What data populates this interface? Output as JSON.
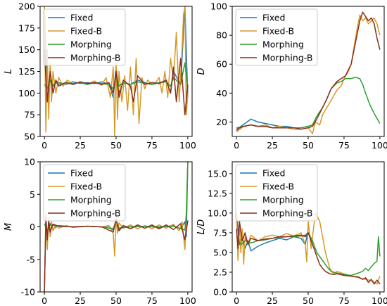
{
  "series_names": [
    "Fixed",
    "Fixed-B",
    "Morphing",
    "Morphing-B"
  ],
  "colors": {
    "Fixed": "#1f77b4",
    "Fixed-B": "#d69a26",
    "Morphing": "#2ca02c",
    "Morphing-B": "#8c2d1f"
  },
  "chart_data": [
    {
      "type": "line",
      "ylabel": "L",
      "xlim": [
        -3,
        103
      ],
      "ylim": [
        50,
        200
      ],
      "xticks": [
        0,
        25,
        50,
        75,
        100
      ],
      "yticks": [
        50,
        75,
        100,
        125,
        150,
        175,
        200
      ],
      "legend": "top-left",
      "grid": false,
      "series": [
        {
          "name": "Fixed",
          "x": [
            0,
            2,
            4,
            6,
            8,
            10,
            15,
            20,
            25,
            30,
            35,
            40,
            45,
            48,
            50,
            52,
            55,
            60,
            65,
            70,
            75,
            80,
            85,
            88,
            90,
            95,
            98,
            100
          ],
          "y": [
            200,
            90,
            120,
            108,
            114,
            112,
            110,
            113,
            111,
            112,
            111,
            113,
            110,
            95,
            130,
            100,
            112,
            110,
            115,
            112,
            110,
            112,
            114,
            100,
            125,
            110,
            200,
            95
          ]
        },
        {
          "name": "Fixed-B",
          "x": [
            0,
            1,
            2,
            3,
            4,
            5,
            6,
            8,
            10,
            13,
            16,
            20,
            25,
            30,
            35,
            40,
            43,
            46,
            48,
            49,
            50,
            51,
            52,
            54,
            56,
            58,
            60,
            62,
            64,
            66,
            68,
            70,
            72,
            75,
            78,
            80,
            82,
            84,
            86,
            88,
            90,
            92,
            94,
            96,
            97,
            98,
            99,
            100
          ],
          "y": [
            200,
            55,
            150,
            70,
            135,
            90,
            125,
            100,
            118,
            108,
            115,
            110,
            113,
            110,
            114,
            109,
            118,
            95,
            130,
            50,
            135,
            70,
            125,
            90,
            120,
            80,
            130,
            75,
            140,
            65,
            118,
            105,
            115,
            110,
            113,
            118,
            100,
            125,
            95,
            140,
            115,
            170,
            90,
            150,
            190,
            200,
            75,
            100
          ]
        },
        {
          "name": "Morphing",
          "x": [
            0,
            2,
            4,
            6,
            8,
            10,
            15,
            20,
            25,
            30,
            35,
            40,
            45,
            48,
            50,
            52,
            55,
            60,
            65,
            70,
            75,
            80,
            85,
            88,
            90,
            95,
            98,
            100
          ],
          "y": [
            110,
            105,
            115,
            108,
            112,
            110,
            112,
            111,
            112,
            110,
            112,
            111,
            110,
            105,
            120,
            108,
            112,
            110,
            113,
            111,
            110,
            112,
            113,
            108,
            118,
            110,
            135,
            105
          ]
        },
        {
          "name": "Morphing-B",
          "x": [
            0,
            2,
            4,
            6,
            8,
            10,
            15,
            20,
            25,
            30,
            35,
            40,
            45,
            48,
            50,
            52,
            55,
            60,
            62,
            65,
            70,
            75,
            80,
            85,
            88,
            90,
            92,
            95,
            98,
            100
          ],
          "y": [
            150,
            90,
            125,
            100,
            115,
            108,
            112,
            110,
            113,
            111,
            112,
            110,
            112,
            100,
            125,
            95,
            115,
            108,
            90,
            120,
            110,
            112,
            111,
            115,
            100,
            130,
            90,
            140,
            75,
            110
          ]
        }
      ]
    },
    {
      "type": "line",
      "ylabel": "D",
      "xlim": [
        -3,
        103
      ],
      "ylim": [
        10,
        100
      ],
      "xticks": [
        0,
        25,
        50,
        75,
        100
      ],
      "yticks": [
        20,
        40,
        60,
        80,
        100
      ],
      "legend": "top-left",
      "grid": false,
      "series": [
        {
          "name": "Fixed",
          "x": [
            0,
            3,
            6,
            10,
            15,
            20,
            25,
            30,
            35,
            40,
            45,
            50
          ],
          "y": [
            14,
            17,
            19,
            22,
            20,
            19,
            18,
            17,
            17,
            16,
            16,
            17
          ]
        },
        {
          "name": "Fixed-B",
          "x": [
            0,
            5,
            10,
            15,
            20,
            25,
            30,
            35,
            40,
            45,
            50,
            53,
            55,
            58,
            60,
            63,
            66,
            70,
            73,
            75,
            78,
            80,
            82,
            84,
            86,
            88,
            90,
            92,
            94,
            96,
            98,
            100
          ],
          "y": [
            13,
            17,
            18,
            17,
            18,
            16,
            17,
            16,
            15,
            15,
            16,
            12,
            20,
            18,
            25,
            30,
            35,
            42,
            45,
            50,
            55,
            60,
            72,
            84,
            94,
            90,
            92,
            88,
            90,
            92,
            88,
            80
          ]
        },
        {
          "name": "Morphing",
          "x": [
            0,
            5,
            10,
            15,
            20,
            25,
            30,
            35,
            40,
            45,
            50,
            53,
            56,
            60,
            63,
            66,
            70,
            73,
            76,
            80,
            83,
            86,
            88,
            90,
            93,
            96,
            100
          ],
          "y": [
            16,
            17,
            18,
            17,
            17,
            16,
            16,
            16,
            16,
            16,
            17,
            18,
            24,
            30,
            36,
            43,
            47,
            48,
            50,
            50,
            51,
            50,
            46,
            40,
            32,
            26,
            19
          ]
        },
        {
          "name": "Morphing-B",
          "x": [
            0,
            5,
            10,
            15,
            20,
            25,
            30,
            35,
            40,
            45,
            50,
            53,
            56,
            60,
            63,
            66,
            70,
            73,
            76,
            80,
            82,
            84,
            86,
            88,
            90,
            92,
            94,
            96,
            98,
            100
          ],
          "y": [
            15,
            17,
            18,
            17,
            17,
            16,
            16,
            16,
            16,
            15,
            16,
            17,
            22,
            30,
            36,
            43,
            48,
            50,
            52,
            60,
            70,
            80,
            90,
            96,
            93,
            90,
            92,
            88,
            78,
            70
          ]
        }
      ]
    },
    {
      "type": "line",
      "ylabel": "M",
      "xlim": [
        -3,
        103
      ],
      "ylim": [
        -10,
        10
      ],
      "xticks": [
        0,
        25,
        50,
        75,
        100
      ],
      "yticks": [
        -10,
        -5,
        0,
        5,
        10
      ],
      "legend": "top-left",
      "grid": false,
      "series": [
        {
          "name": "Fixed",
          "x": [
            0,
            1,
            2,
            4,
            6,
            10,
            20,
            30,
            40,
            45,
            48,
            50,
            52,
            55,
            60,
            70,
            80,
            90,
            95,
            98,
            99,
            100
          ],
          "y": [
            -10,
            1,
            -1,
            0.5,
            -0.3,
            0.2,
            0,
            0.1,
            0,
            0.1,
            -0.5,
            0.8,
            -0.3,
            0.1,
            0,
            0.1,
            -0.1,
            0.2,
            -0.3,
            0.8,
            -1.5,
            10
          ]
        },
        {
          "name": "Fixed-B",
          "x": [
            0,
            1,
            2,
            3,
            4,
            5,
            6,
            8,
            10,
            15,
            20,
            30,
            40,
            45,
            48,
            49,
            50,
            51,
            52,
            55,
            60,
            65,
            70,
            75,
            80,
            85,
            90,
            94,
            96,
            98,
            99,
            100
          ],
          "y": [
            -10,
            2,
            -3.5,
            1.5,
            -1.5,
            0.8,
            -0.6,
            0.3,
            -0.2,
            0.2,
            -0.1,
            0.1,
            0,
            0.2,
            -1,
            -4.5,
            1.5,
            -1,
            0.6,
            -0.2,
            0.3,
            -0.3,
            0.2,
            -0.3,
            0.3,
            -0.2,
            0.4,
            -0.6,
            0.8,
            -3.5,
            2,
            10
          ]
        },
        {
          "name": "Morphing",
          "x": [
            0,
            2,
            4,
            10,
            20,
            30,
            40,
            48,
            50,
            52,
            60,
            70,
            80,
            90,
            98,
            99,
            100
          ],
          "y": [
            0.5,
            -0.5,
            0.3,
            0.1,
            0,
            0.1,
            0,
            -0.3,
            1,
            -0.2,
            0,
            0.1,
            0,
            0.1,
            -0.5,
            2,
            10
          ]
        },
        {
          "name": "Morphing-B",
          "x": [
            0,
            1,
            2,
            3,
            4,
            6,
            10,
            20,
            30,
            40,
            48,
            50,
            52,
            55,
            60,
            65,
            70,
            75,
            80,
            85,
            90,
            95,
            98,
            100
          ],
          "y": [
            -10,
            1.5,
            -2,
            1,
            -0.8,
            0.4,
            0.1,
            0,
            0.1,
            0,
            -0.8,
            1.2,
            -0.6,
            0.2,
            -0.3,
            0.3,
            -0.2,
            0.3,
            -0.3,
            0.3,
            -0.4,
            0.5,
            -2,
            1
          ]
        }
      ]
    },
    {
      "type": "line",
      "ylabel": "L/D",
      "xlim": [
        -3,
        103
      ],
      "ylim": [
        0,
        16.5
      ],
      "xticks": [
        0,
        25,
        50,
        75,
        100
      ],
      "yticks": [
        0.0,
        2.5,
        5.0,
        7.5,
        10.0,
        12.5,
        15.0
      ],
      "legend": "top-left",
      "grid": false,
      "series": [
        {
          "name": "Fixed",
          "x": [
            0,
            2,
            4,
            6,
            8,
            10,
            15,
            20,
            25,
            30,
            35,
            40,
            45,
            48,
            50
          ],
          "y": [
            10,
            6,
            7,
            5.5,
            6.5,
            5.2,
            5.8,
            6.2,
            6.5,
            6.8,
            6.6,
            7,
            6.8,
            6,
            8
          ]
        },
        {
          "name": "Fixed-B",
          "x": [
            0,
            1,
            2,
            3,
            4,
            5,
            6,
            8,
            10,
            15,
            20,
            25,
            30,
            35,
            40,
            45,
            48,
            49,
            50,
            52,
            55,
            58,
            60,
            62,
            65,
            68,
            70,
            75,
            80,
            85,
            90,
            95,
            98,
            100
          ],
          "y": [
            10,
            4,
            9,
            5,
            8,
            3.5,
            7,
            6,
            7.2,
            6.5,
            7,
            7.2,
            7,
            7.4,
            7.1,
            7.5,
            6,
            3.8,
            9,
            5.5,
            10,
            9,
            7,
            5,
            3,
            2.2,
            2.6,
            2.3,
            2,
            1.8,
            1.6,
            1.4,
            1,
            2
          ]
        },
        {
          "name": "Morphing",
          "x": [
            0,
            3,
            6,
            10,
            15,
            20,
            25,
            30,
            35,
            40,
            45,
            48,
            50,
            53,
            56,
            60,
            63,
            66,
            70,
            75,
            80,
            85,
            88,
            90,
            92,
            94,
            96,
            98,
            99,
            100
          ],
          "y": [
            7,
            6,
            6.5,
            6.2,
            6.5,
            6.6,
            6.8,
            6.9,
            7,
            7,
            7.1,
            7.2,
            7.5,
            6.5,
            5,
            4,
            3.2,
            2.6,
            2.4,
            2.2,
            2.1,
            2.4,
            2.6,
            3,
            2.7,
            3.2,
            3.6,
            3.9,
            7,
            4.5
          ]
        },
        {
          "name": "Morphing-B",
          "x": [
            0,
            1,
            2,
            4,
            6,
            8,
            10,
            15,
            20,
            25,
            30,
            35,
            40,
            45,
            48,
            50,
            52,
            55,
            58,
            60,
            62,
            65,
            68,
            70,
            75,
            80,
            85,
            88,
            90,
            92,
            94,
            96,
            98,
            100
          ],
          "y": [
            8,
            5.5,
            9,
            6.5,
            7.5,
            6,
            6.8,
            6.5,
            6.7,
            6.8,
            7,
            7,
            7.1,
            7.2,
            7,
            7.5,
            6.5,
            5,
            3.5,
            3,
            2.6,
            2.3,
            2.2,
            2.3,
            2.1,
            2,
            1.9,
            1.6,
            1.8,
            1.2,
            1.6,
            1,
            1.5,
            1
          ]
        }
      ]
    }
  ]
}
